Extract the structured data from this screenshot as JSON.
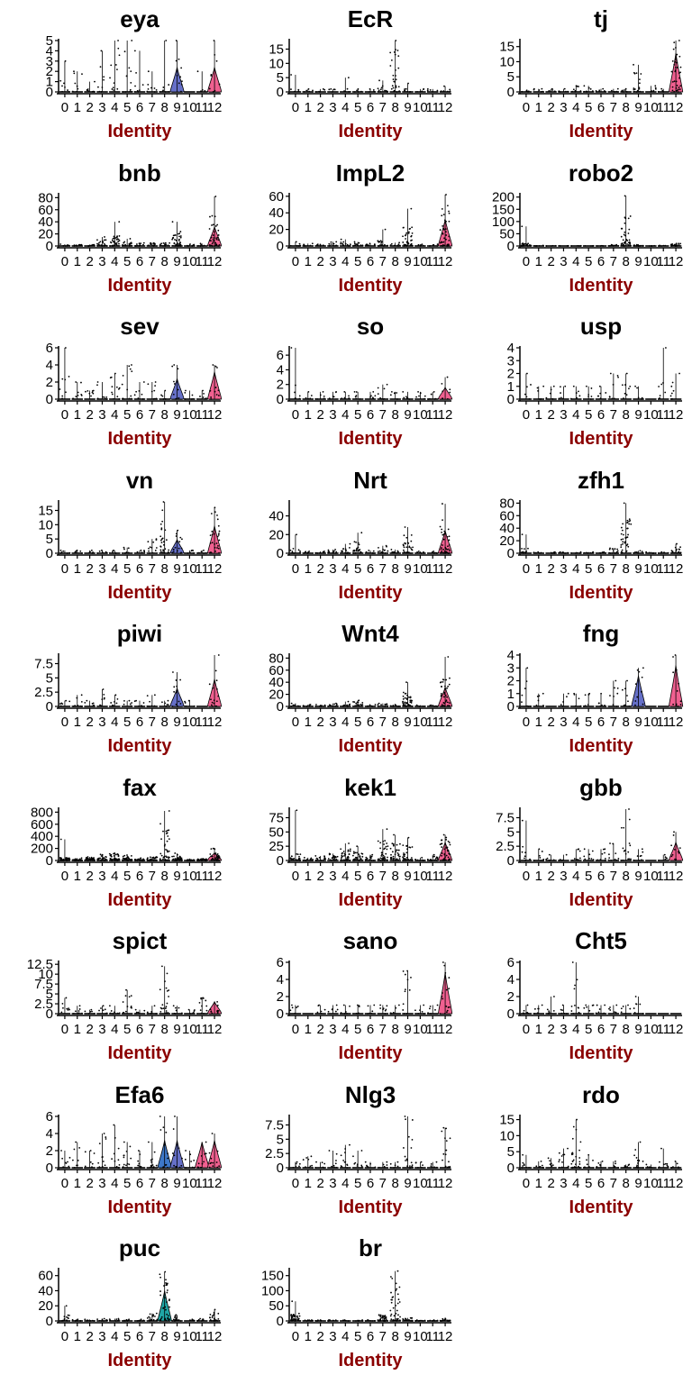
{
  "chart_data": {
    "type": "violin",
    "xlabel": "Identity",
    "categories": [
      "0",
      "1",
      "2",
      "3",
      "4",
      "5",
      "6",
      "7",
      "8",
      "9",
      "10",
      "11",
      "12"
    ],
    "colors": {
      "purple": "#6670c8",
      "pink": "#f06090",
      "blue": "#3d78c8",
      "teal": "#20a6a6"
    },
    "panels": [
      {
        "title": "eya",
        "yticks": [
          0,
          1,
          2,
          3,
          4,
          5
        ],
        "ymax": 5,
        "max": [
          3,
          2,
          1,
          4,
          5,
          5,
          4,
          2,
          5,
          5,
          0,
          2,
          5
        ],
        "spread": [
          1,
          1,
          1,
          1,
          2,
          2,
          1,
          1,
          1,
          1.5,
          0,
          0,
          1.5
        ],
        "violins": {
          "9": "purple",
          "12": "pink"
        }
      },
      {
        "title": "EcR",
        "yticks": [
          0,
          5,
          10,
          15
        ],
        "ymax": 18,
        "max": [
          6,
          1,
          1,
          1,
          5,
          1,
          1,
          4,
          18,
          3,
          1,
          1,
          2
        ],
        "spread": [
          0.5,
          0.3,
          0.3,
          0.3,
          0.5,
          0.3,
          0.3,
          2,
          6,
          1,
          0.3,
          0.3,
          0.5
        ],
        "violins": {}
      },
      {
        "title": "tj",
        "yticks": [
          0,
          5,
          10,
          15
        ],
        "ymax": 17,
        "max": [
          0.5,
          1,
          1,
          1,
          2,
          2,
          1,
          1,
          1,
          9,
          2,
          1,
          17
        ],
        "spread": [
          0.3,
          0.5,
          0.3,
          0.5,
          1,
          1,
          0.5,
          0.5,
          0.5,
          3,
          0.5,
          0.3,
          8
        ],
        "violins": {
          "12": "pink"
        }
      },
      {
        "title": "bnb",
        "yticks": [
          0,
          20,
          40,
          60,
          80
        ],
        "ymax": 85,
        "max": [
          3,
          2,
          2,
          15,
          40,
          12,
          5,
          5,
          5,
          40,
          3,
          4,
          82
        ],
        "spread": [
          1,
          1,
          1,
          4,
          8,
          4,
          2,
          2,
          2,
          10,
          1,
          1,
          20
        ],
        "violins": {
          "12": "pink"
        }
      },
      {
        "title": "ImpL2",
        "yticks": [
          0,
          20,
          40,
          60
        ],
        "ymax": 62,
        "max": [
          5,
          3,
          2,
          5,
          8,
          5,
          3,
          20,
          4,
          45,
          2,
          2,
          62
        ],
        "spread": [
          1,
          1,
          1,
          2,
          2,
          2,
          1,
          3,
          1,
          10,
          0.5,
          0.5,
          20
        ],
        "violins": {
          "12": "pink"
        }
      },
      {
        "title": "robo2",
        "yticks": [
          0,
          50,
          100,
          150,
          200
        ],
        "ymax": 210,
        "max": [
          80,
          2,
          1,
          1,
          1,
          1,
          1,
          5,
          205,
          5,
          1,
          2,
          10
        ],
        "spread": [
          5,
          0.5,
          0.3,
          0.3,
          0.3,
          0.3,
          0.3,
          2,
          50,
          3,
          0.3,
          0.5,
          4
        ],
        "violins": {}
      },
      {
        "title": "sev",
        "yticks": [
          0,
          2,
          4,
          6
        ],
        "ymax": 6,
        "max": [
          6,
          2,
          1,
          2,
          3,
          4,
          2,
          2,
          1,
          4,
          1,
          1,
          4
        ],
        "spread": [
          1,
          1,
          1,
          1,
          2,
          2,
          1,
          1,
          0.5,
          1.5,
          0.5,
          0.5,
          2
        ],
        "violins": {
          "9": "purple",
          "12": "pink"
        }
      },
      {
        "title": "so",
        "yticks": [
          0,
          2,
          4,
          6
        ],
        "ymax": 7,
        "max": [
          7,
          1,
          1,
          1,
          1,
          1,
          1,
          2,
          1,
          1,
          1,
          1,
          3
        ],
        "spread": [
          1,
          0.5,
          0.5,
          0.5,
          0.5,
          0.5,
          0.5,
          1,
          0.5,
          0.5,
          0.5,
          0.5,
          1
        ],
        "violins": {
          "12": "pink"
        }
      },
      {
        "title": "usp",
        "yticks": [
          0,
          1,
          2,
          3,
          4
        ],
        "ymax": 4,
        "max": [
          2,
          1,
          1,
          1,
          1,
          1,
          1,
          2,
          2,
          1,
          0,
          4,
          2
        ],
        "spread": [
          0.5,
          0.5,
          0.5,
          0.5,
          0.5,
          0.5,
          0.5,
          1,
          1,
          0.5,
          0,
          1,
          1
        ],
        "violins": {}
      },
      {
        "title": "vn",
        "yticks": [
          0,
          5,
          10,
          15
        ],
        "ymax": 18,
        "max": [
          1,
          1,
          1,
          1,
          1,
          2,
          1,
          5,
          18,
          8,
          1,
          1,
          16
        ],
        "spread": [
          0.5,
          0.5,
          0.5,
          0.5,
          0.5,
          1,
          0.5,
          2,
          6,
          3,
          0.5,
          0.5,
          6
        ],
        "violins": {
          "9": "purple",
          "12": "pink"
        }
      },
      {
        "title": "Nrt",
        "yticks": [
          0,
          20,
          40
        ],
        "ymax": 55,
        "max": [
          20,
          2,
          2,
          4,
          10,
          22,
          3,
          8,
          4,
          28,
          2,
          2,
          53
        ],
        "spread": [
          2,
          1,
          1,
          2,
          3,
          5,
          1,
          3,
          1,
          8,
          0.5,
          0.5,
          15
        ],
        "violins": {
          "12": "pink"
        }
      },
      {
        "title": "zfh1",
        "yticks": [
          0,
          20,
          40,
          60,
          80
        ],
        "ymax": 82,
        "max": [
          30,
          2,
          2,
          2,
          2,
          2,
          2,
          8,
          80,
          4,
          2,
          2,
          15
        ],
        "spread": [
          3,
          0.5,
          0.5,
          0.5,
          0.5,
          0.5,
          0.5,
          3,
          25,
          1,
          0.5,
          0.5,
          4
        ],
        "violins": {}
      },
      {
        "title": "piwi",
        "yticks": [
          0,
          2.5,
          5,
          7.5
        ],
        "ymax": 9,
        "max": [
          1,
          2,
          1,
          3,
          2,
          1,
          1,
          2,
          1,
          6,
          1,
          0,
          9
        ],
        "spread": [
          0.5,
          1,
          0.5,
          1,
          1,
          0.5,
          0.5,
          1,
          0.5,
          2,
          0.5,
          0,
          3
        ],
        "violins": {
          "9": "purple",
          "12": "pink"
        }
      },
      {
        "title": "Wnt4",
        "yticks": [
          0,
          20,
          40,
          60,
          80
        ],
        "ymax": 85,
        "max": [
          5,
          3,
          3,
          5,
          8,
          10,
          3,
          5,
          3,
          40,
          2,
          2,
          82
        ],
        "spread": [
          1,
          1,
          1,
          2,
          2,
          3,
          1,
          2,
          1,
          10,
          0.5,
          0.5,
          20
        ],
        "violins": {
          "12": "pink"
        }
      },
      {
        "title": "fng",
        "yticks": [
          0,
          1,
          2,
          3,
          4
        ],
        "ymax": 4,
        "max": [
          3,
          1,
          0,
          1,
          1,
          1,
          1,
          2,
          2,
          3,
          0,
          0,
          4
        ],
        "spread": [
          1,
          0.5,
          0,
          0.5,
          0.5,
          0.5,
          0.5,
          1,
          1,
          1.5,
          0,
          0,
          2
        ],
        "violins": {
          "9": "purple",
          "12": "pink"
        }
      },
      {
        "title": "fax",
        "yticks": [
          0,
          200,
          400,
          600,
          800
        ],
        "ymax": 850,
        "max": [
          350,
          40,
          60,
          100,
          120,
          90,
          40,
          60,
          820,
          120,
          20,
          30,
          200
        ],
        "spread": [
          20,
          10,
          20,
          40,
          50,
          40,
          10,
          30,
          250,
          40,
          5,
          10,
          80
        ],
        "violins": {
          "12": "pink"
        }
      },
      {
        "title": "kek1",
        "yticks": [
          0,
          25,
          50,
          75
        ],
        "ymax": 90,
        "max": [
          88,
          5,
          8,
          12,
          30,
          25,
          10,
          55,
          45,
          40,
          5,
          10,
          45
        ],
        "spread": [
          5,
          2,
          3,
          5,
          8,
          6,
          3,
          15,
          12,
          12,
          1,
          3,
          20
        ],
        "violins": {
          "12": "pink"
        }
      },
      {
        "title": "gbb",
        "yticks": [
          0,
          2.5,
          5,
          7.5
        ],
        "ymax": 9,
        "max": [
          7,
          2,
          1,
          1,
          2,
          2,
          2,
          3,
          9,
          2,
          0,
          1,
          5
        ],
        "spread": [
          1,
          1,
          0.5,
          0.5,
          1,
          1,
          1,
          2,
          3,
          1,
          0,
          0.5,
          2
        ],
        "violins": {
          "12": "pink"
        }
      },
      {
        "title": "spict",
        "yticks": [
          0,
          2.5,
          5,
          7.5,
          10,
          12.5
        ],
        "ymax": 13,
        "max": [
          4,
          2,
          1,
          2,
          2,
          6,
          1,
          2,
          12,
          2,
          1,
          4,
          3
        ],
        "spread": [
          1,
          1,
          0.5,
          1,
          1,
          2,
          0.5,
          1,
          4,
          1,
          0.5,
          2,
          2
        ],
        "violins": {
          "12": "pink"
        }
      },
      {
        "title": "sano",
        "yticks": [
          0,
          2,
          4,
          6
        ],
        "ymax": 6,
        "max": [
          1,
          0,
          1,
          1,
          1,
          1,
          1,
          1,
          1,
          5,
          1,
          1,
          6
        ],
        "spread": [
          0.5,
          0,
          0.5,
          0.5,
          0.5,
          0.5,
          0.5,
          1,
          0.5,
          2,
          0.5,
          0.5,
          3
        ],
        "violins": {
          "12": "pink"
        }
      },
      {
        "title": "Cht5",
        "yticks": [
          0,
          2,
          4,
          6
        ],
        "ymax": 6,
        "max": [
          1,
          1,
          2,
          1,
          6,
          1,
          1,
          1,
          1,
          2,
          0,
          0,
          0
        ],
        "spread": [
          0.5,
          0.5,
          1,
          0.5,
          2,
          0.5,
          0.5,
          0.5,
          0.5,
          1,
          0,
          0,
          0
        ],
        "violins": {}
      },
      {
        "title": "Efa6",
        "yticks": [
          0,
          2,
          4,
          6
        ],
        "ymax": 6,
        "max": [
          2,
          3,
          2,
          4,
          5,
          3,
          2,
          3,
          6,
          6,
          2,
          3,
          4
        ],
        "spread": [
          1,
          1,
          1,
          2,
          2,
          2,
          1,
          2,
          2,
          2,
          1,
          2,
          2
        ],
        "violins": {
          "8": "blue",
          "9": "purple",
          "11": "pink",
          "12": "pink"
        }
      },
      {
        "title": "Nlg3",
        "yticks": [
          0,
          2.5,
          5,
          7.5
        ],
        "ymax": 9,
        "max": [
          1,
          2,
          1,
          3,
          4,
          3,
          1,
          1,
          1,
          9,
          1,
          1,
          7
        ],
        "spread": [
          0.5,
          1,
          0.5,
          1,
          2,
          1,
          0.5,
          0.5,
          0.5,
          4,
          0.5,
          0.5,
          3
        ],
        "violins": {}
      },
      {
        "title": "rdo",
        "yticks": [
          0,
          5,
          10,
          15
        ],
        "ymax": 16,
        "max": [
          4,
          2,
          3,
          6,
          15,
          4,
          2,
          2,
          1,
          8,
          1,
          6,
          2
        ],
        "spread": [
          1,
          1,
          1,
          2,
          6,
          1,
          0.5,
          0.5,
          0.5,
          3,
          0.5,
          1,
          1
        ],
        "violins": {}
      },
      {
        "title": "puc",
        "yticks": [
          0,
          20,
          40,
          60
        ],
        "ymax": 68,
        "max": [
          20,
          2,
          2,
          3,
          3,
          2,
          2,
          10,
          65,
          8,
          2,
          3,
          15
        ],
        "spread": [
          3,
          1,
          1,
          1,
          1,
          1,
          1,
          4,
          25,
          3,
          0.5,
          1,
          5
        ],
        "violins": {
          "8": "teal"
        }
      },
      {
        "title": "br",
        "yticks": [
          0,
          50,
          100,
          150
        ],
        "ymax": 170,
        "max": [
          65,
          3,
          3,
          3,
          3,
          3,
          3,
          20,
          165,
          10,
          3,
          3,
          8
        ],
        "spread": [
          10,
          1,
          1,
          1,
          1,
          1,
          1,
          8,
          60,
          4,
          1,
          1,
          3
        ],
        "violins": {}
      }
    ]
  }
}
